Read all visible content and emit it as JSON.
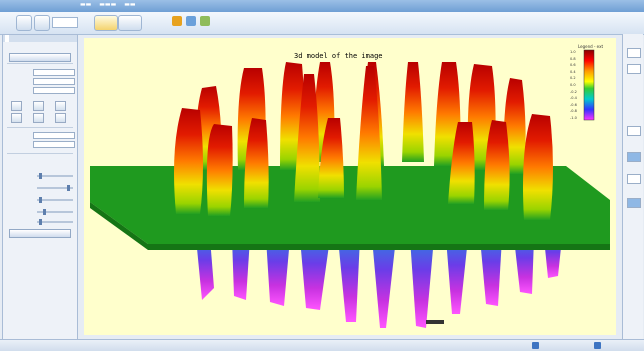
{
  "plot": {
    "title": "3d model of the image",
    "legend_label": "Legend - ext",
    "legend_ticks": [
      "1.0",
      "0.8",
      "0.6",
      "0.4",
      "0.2",
      "0.0",
      "-0.2",
      "-0.4",
      "-0.6",
      "-0.8",
      "-1.0"
    ]
  },
  "colors": {
    "plot_background": "#ffffcc",
    "floor": "#1e8f1e",
    "peak_top": "#d00000",
    "valley_bottom": "#e02ce0"
  },
  "icons": [
    "app-icon",
    "open-icon",
    "save-icon",
    "play-icon",
    "stop-icon",
    "settings-icon",
    "help-icon",
    "info-icon"
  ]
}
